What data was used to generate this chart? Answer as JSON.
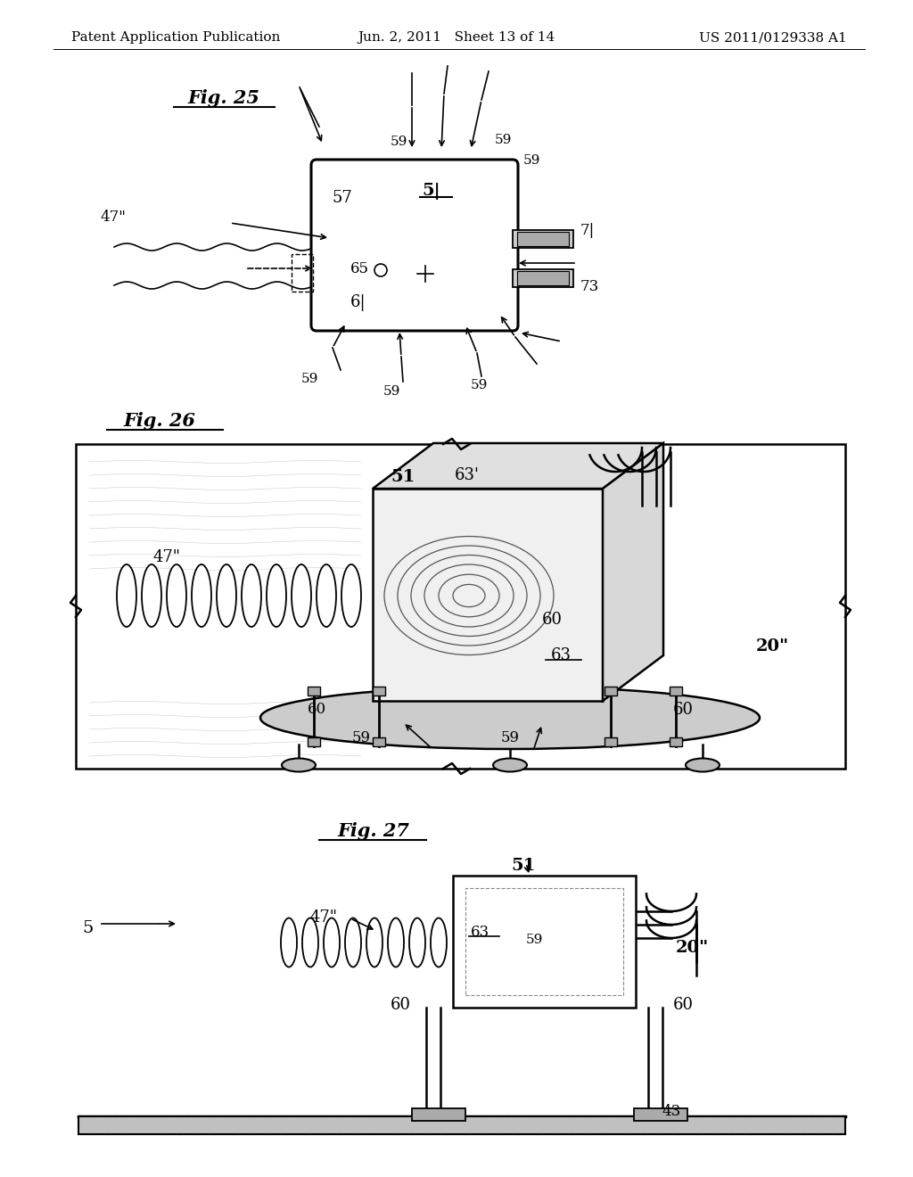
{
  "bg_color": "#ffffff",
  "header_left": "Patent Application Publication",
  "header_center": "Jun. 2, 2011   Sheet 13 of 14",
  "header_right": "US 2011/0129338 A1",
  "header_fontsize": 11,
  "fig25_title": "Fig. 25",
  "fig26_title": "Fig. 26",
  "fig27_title": "Fig. 27"
}
